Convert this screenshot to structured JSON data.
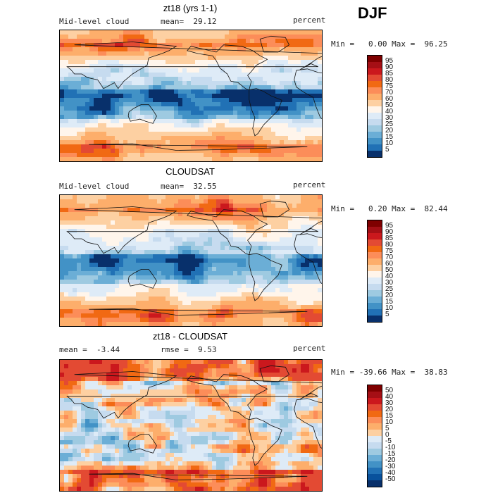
{
  "season": "DJF",
  "panels": [
    {
      "title": "zt18 (yrs 1-1)",
      "left_label": "Mid-level cloud",
      "mean_label": "mean=",
      "mean_value": "29.12",
      "right_label": "percent",
      "min_label": "Min =",
      "min_value": "0.00",
      "max_label": "Max =",
      "max_value": "96.25",
      "colorbar": {
        "levels": [
          "95",
          "90",
          "85",
          "80",
          "75",
          "70",
          "60",
          "50",
          "40",
          "30",
          "25",
          "20",
          "15",
          "10",
          "5"
        ],
        "colors": [
          "#7f0000",
          "#a50f15",
          "#cb181d",
          "#e34a33",
          "#f16913",
          "#fc8d59",
          "#fdae6b",
          "#fdd0a2",
          "#fff5eb",
          "#deebf7",
          "#c6dbef",
          "#9ecae1",
          "#6baed6",
          "#4292c6",
          "#2171b5",
          "#08306b"
        ]
      },
      "map_pattern": "model"
    },
    {
      "title": "CLOUDSAT",
      "left_label": "Mid-level cloud",
      "mean_label": "mean=",
      "mean_value": "32.55",
      "right_label": "percent",
      "min_label": "Min =",
      "min_value": "0.20",
      "max_label": "Max =",
      "max_value": "82.44",
      "colorbar": {
        "levels": [
          "95",
          "90",
          "85",
          "80",
          "75",
          "70",
          "60",
          "50",
          "40",
          "30",
          "25",
          "20",
          "15",
          "10",
          "5"
        ],
        "colors": [
          "#7f0000",
          "#a50f15",
          "#cb181d",
          "#e34a33",
          "#f16913",
          "#fc8d59",
          "#fdae6b",
          "#fdd0a2",
          "#fff5eb",
          "#deebf7",
          "#c6dbef",
          "#9ecae1",
          "#6baed6",
          "#4292c6",
          "#2171b5",
          "#08306b"
        ]
      },
      "map_pattern": "obs"
    },
    {
      "title": "zt18 - CLOUDSAT",
      "left_label": "mean =",
      "mean_label": "rmse =",
      "left_value": "-3.44",
      "mean_value": "9.53",
      "right_label": "percent",
      "min_label": "Min =",
      "min_value": "-39.66",
      "max_label": "Max =",
      "max_value": "38.83",
      "colorbar": {
        "levels": [
          "50",
          "40",
          "30",
          "20",
          "15",
          "10",
          "5",
          "0",
          "-5",
          "-10",
          "-15",
          "-20",
          "-30",
          "-40",
          "-50"
        ],
        "colors": [
          "#7f0000",
          "#a50f15",
          "#cb181d",
          "#e34a33",
          "#f16913",
          "#fc8d59",
          "#fdae6b",
          "#fdd0a2",
          "#deebf7",
          "#c6dbef",
          "#9ecae1",
          "#6baed6",
          "#4292c6",
          "#2171b5",
          "#08519c",
          "#08306b"
        ]
      },
      "map_pattern": "diff"
    }
  ]
}
